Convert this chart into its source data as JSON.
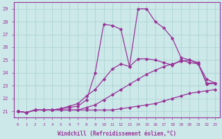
{
  "xlabel": "Windchill (Refroidissement éolien,°C)",
  "xlim": [
    -0.5,
    23.5
  ],
  "ylim": [
    20.5,
    29.5
  ],
  "yticks": [
    21,
    22,
    23,
    24,
    25,
    26,
    27,
    28,
    29
  ],
  "xticks": [
    0,
    1,
    2,
    3,
    4,
    5,
    6,
    7,
    8,
    9,
    10,
    11,
    12,
    13,
    14,
    15,
    16,
    17,
    18,
    19,
    20,
    21,
    22,
    23
  ],
  "bg_color": "#cce8e8",
  "grid_color": "#a8d0d0",
  "line_color": "#993399",
  "line1": [
    21.0,
    20.9,
    21.1,
    21.1,
    21.1,
    21.1,
    21.1,
    21.1,
    21.1,
    21.1,
    21.1,
    21.1,
    21.2,
    21.3,
    21.4,
    21.5,
    21.6,
    21.8,
    22.0,
    22.2,
    22.4,
    22.5,
    22.6,
    22.7
  ],
  "line2": [
    21.0,
    20.9,
    21.1,
    21.1,
    21.1,
    21.1,
    21.1,
    21.1,
    21.3,
    21.5,
    21.9,
    22.3,
    22.7,
    23.1,
    23.5,
    23.9,
    24.2,
    24.5,
    24.7,
    24.9,
    25.0,
    24.8,
    23.1,
    23.2
  ],
  "line3": [
    21.0,
    20.9,
    21.1,
    21.1,
    21.1,
    21.2,
    21.4,
    21.6,
    22.2,
    22.7,
    23.5,
    24.3,
    24.7,
    24.5,
    25.1,
    25.1,
    25.0,
    24.8,
    24.6,
    25.0,
    24.8,
    24.7,
    23.2,
    23.2
  ],
  "line4": [
    21.0,
    20.9,
    21.1,
    21.1,
    21.1,
    21.2,
    21.3,
    21.4,
    21.9,
    24.0,
    27.8,
    27.7,
    27.4,
    24.5,
    29.0,
    29.0,
    28.0,
    27.5,
    26.7,
    25.2,
    25.0,
    24.7,
    23.5,
    23.2
  ]
}
